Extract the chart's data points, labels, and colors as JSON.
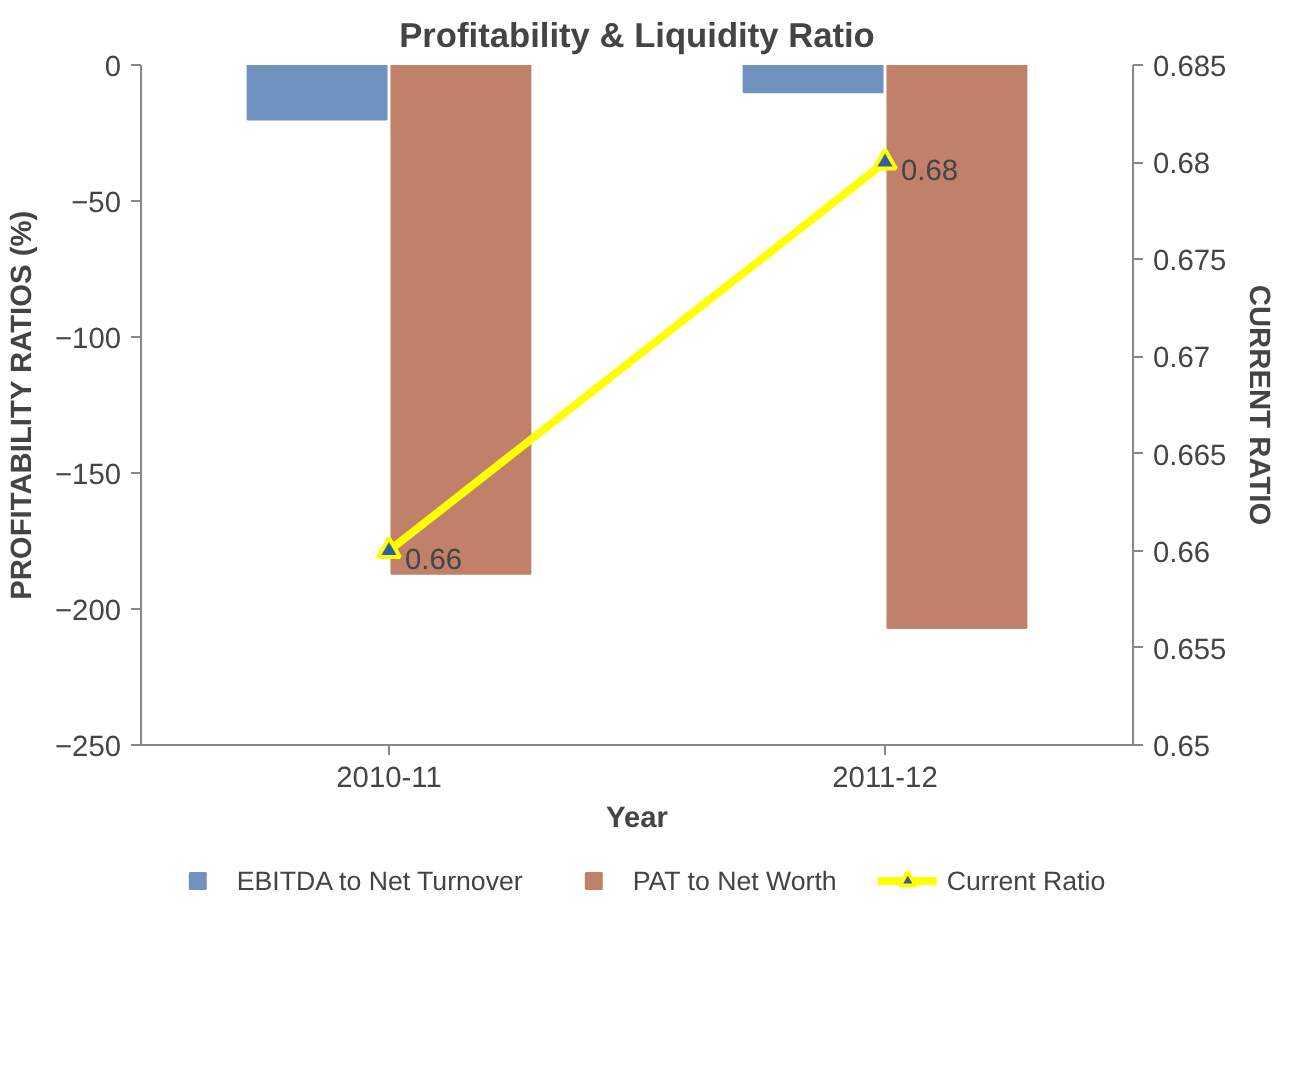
{
  "chart_data": {
    "type": "bar",
    "title": "Profitability & Liquidity Ratio",
    "xlabel": "Year",
    "ylabel": "PROFITABILITY RATIOS (%)",
    "y2label": "CURRENT RATIO",
    "categories": [
      "2010-11",
      "2011-12"
    ],
    "series": [
      {
        "name": "EBITDA to Net Turnover",
        "color": "#7092be",
        "values": [
          -20,
          -10
        ]
      },
      {
        "name": "PAT to Net Worth",
        "color": "#c0806a",
        "values": [
          -187,
          -207
        ]
      },
      {
        "name": "Current Ratio",
        "type": "line",
        "axis": "y2",
        "color": "#ffff00",
        "marker": "triangle",
        "values": [
          0.66,
          0.68
        ],
        "value_labels": [
          "0.66",
          "0.68"
        ]
      }
    ],
    "ylim": [
      -250,
      0
    ],
    "yticks": [
      0,
      -50,
      -100,
      -150,
      -200,
      -250
    ],
    "y2lim": [
      0.65,
      0.685
    ],
    "y2ticks": [
      0.65,
      0.655,
      0.66,
      0.665,
      0.67,
      0.675,
      0.68,
      0.685
    ],
    "grid": false,
    "legend": "bottom"
  }
}
